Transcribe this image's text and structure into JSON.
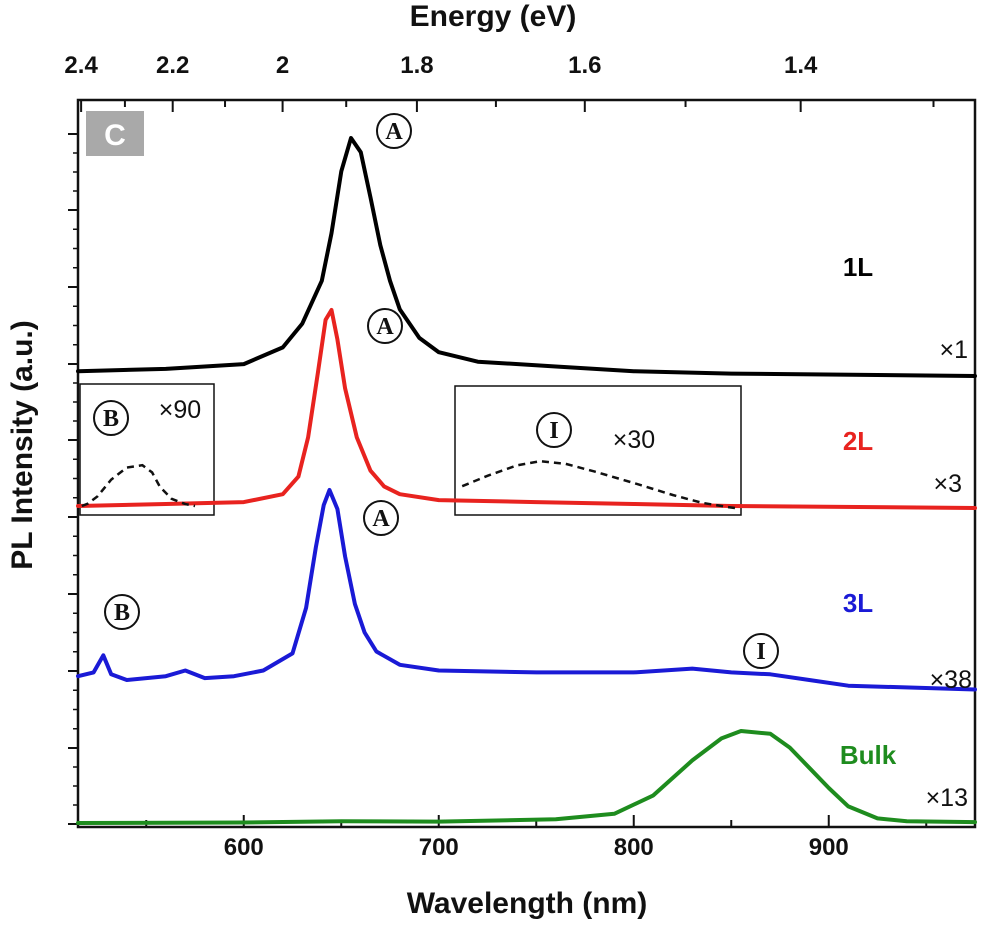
{
  "chart_data": {
    "type": "line",
    "panel_label": "C",
    "xlabel": "Wavelength (nm)",
    "xlabel_top": "Energy (eV)",
    "ylabel": "PL Intensity (a.u.)",
    "xlim": [
      515,
      975
    ],
    "x_ticks": [
      "600",
      "700",
      "800",
      "900"
    ],
    "x_ticks_top": [
      "2.4",
      "2.2",
      "2",
      "1.8",
      "1.6",
      "1.4"
    ],
    "y_ticks_labeled": false,
    "series": [
      {
        "name": "1L",
        "color": "#000000",
        "scale_label": "×1",
        "points": [
          [
            515,
            0.02
          ],
          [
            560,
            0.03
          ],
          [
            600,
            0.05
          ],
          [
            620,
            0.12
          ],
          [
            630,
            0.22
          ],
          [
            640,
            0.4
          ],
          [
            645,
            0.6
          ],
          [
            650,
            0.86
          ],
          [
            655,
            1.0
          ],
          [
            660,
            0.94
          ],
          [
            665,
            0.75
          ],
          [
            670,
            0.55
          ],
          [
            675,
            0.4
          ],
          [
            680,
            0.28
          ],
          [
            690,
            0.16
          ],
          [
            700,
            0.1
          ],
          [
            720,
            0.06
          ],
          [
            760,
            0.04
          ],
          [
            800,
            0.02
          ],
          [
            850,
            0.01
          ],
          [
            975,
            0.0
          ]
        ]
      },
      {
        "name": "2L",
        "color": "#e8231f",
        "scale_label": "×3",
        "points": [
          [
            515,
            0.0
          ],
          [
            560,
            0.01
          ],
          [
            600,
            0.02
          ],
          [
            620,
            0.06
          ],
          [
            628,
            0.15
          ],
          [
            633,
            0.35
          ],
          [
            638,
            0.68
          ],
          [
            642,
            0.95
          ],
          [
            645,
            1.0
          ],
          [
            648,
            0.85
          ],
          [
            652,
            0.6
          ],
          [
            658,
            0.35
          ],
          [
            665,
            0.18
          ],
          [
            672,
            0.1
          ],
          [
            680,
            0.06
          ],
          [
            700,
            0.03
          ],
          [
            750,
            0.02
          ],
          [
            800,
            0.01
          ],
          [
            850,
            0.0
          ],
          [
            975,
            -0.01
          ]
        ]
      },
      {
        "name": "3L",
        "color": "#1a1ad6",
        "scale_label": "×38",
        "points": [
          [
            515,
            0.02
          ],
          [
            523,
            0.04
          ],
          [
            528,
            0.13
          ],
          [
            532,
            0.03
          ],
          [
            540,
            0.0
          ],
          [
            560,
            0.02
          ],
          [
            570,
            0.05
          ],
          [
            580,
            0.01
          ],
          [
            595,
            0.02
          ],
          [
            610,
            0.05
          ],
          [
            625,
            0.14
          ],
          [
            632,
            0.38
          ],
          [
            637,
            0.7
          ],
          [
            641,
            0.92
          ],
          [
            644,
            1.0
          ],
          [
            648,
            0.9
          ],
          [
            652,
            0.65
          ],
          [
            657,
            0.4
          ],
          [
            662,
            0.25
          ],
          [
            668,
            0.15
          ],
          [
            680,
            0.08
          ],
          [
            700,
            0.05
          ],
          [
            750,
            0.04
          ],
          [
            800,
            0.04
          ],
          [
            830,
            0.06
          ],
          [
            850,
            0.04
          ],
          [
            870,
            0.03
          ],
          [
            890,
            0.0
          ],
          [
            910,
            -0.03
          ],
          [
            975,
            -0.05
          ]
        ]
      },
      {
        "name": "Bulk",
        "color": "#1e8c1e",
        "scale_label": "×13",
        "points": [
          [
            515,
            0.0
          ],
          [
            600,
            0.005
          ],
          [
            650,
            0.02
          ],
          [
            700,
            0.015
          ],
          [
            760,
            0.04
          ],
          [
            790,
            0.1
          ],
          [
            810,
            0.3
          ],
          [
            830,
            0.68
          ],
          [
            845,
            0.92
          ],
          [
            855,
            1.0
          ],
          [
            870,
            0.97
          ],
          [
            880,
            0.82
          ],
          [
            890,
            0.6
          ],
          [
            900,
            0.38
          ],
          [
            910,
            0.18
          ],
          [
            925,
            0.05
          ],
          [
            940,
            0.02
          ],
          [
            975,
            0.01
          ]
        ]
      }
    ],
    "insets": [
      {
        "parent": "2L",
        "peak": "B",
        "scale_label": "×90",
        "points": [
          [
            517,
            0.0
          ],
          [
            520,
            0.05
          ],
          [
            525,
            0.2
          ],
          [
            532,
            0.55
          ],
          [
            540,
            0.8
          ],
          [
            548,
            0.85
          ],
          [
            553,
            0.7
          ],
          [
            557,
            0.4
          ],
          [
            563,
            0.15
          ],
          [
            570,
            0.04
          ],
          [
            575,
            0.0
          ]
        ]
      },
      {
        "parent": "2L",
        "peak": "I",
        "scale_label": "×30",
        "points": [
          [
            712,
            0.42
          ],
          [
            725,
            0.62
          ],
          [
            740,
            0.82
          ],
          [
            752,
            0.9
          ],
          [
            765,
            0.85
          ],
          [
            780,
            0.7
          ],
          [
            800,
            0.48
          ],
          [
            820,
            0.25
          ],
          [
            835,
            0.1
          ],
          [
            848,
            0.02
          ],
          [
            852,
            0.0
          ]
        ]
      }
    ],
    "peak_labels": [
      {
        "series": "1L",
        "letter": "A"
      },
      {
        "series": "2L",
        "letter": "A"
      },
      {
        "series": "2L",
        "letter": "B"
      },
      {
        "series": "2L",
        "letter": "I"
      },
      {
        "series": "3L",
        "letter": "A"
      },
      {
        "series": "3L",
        "letter": "B"
      },
      {
        "series": "3L",
        "letter": "I"
      }
    ]
  }
}
